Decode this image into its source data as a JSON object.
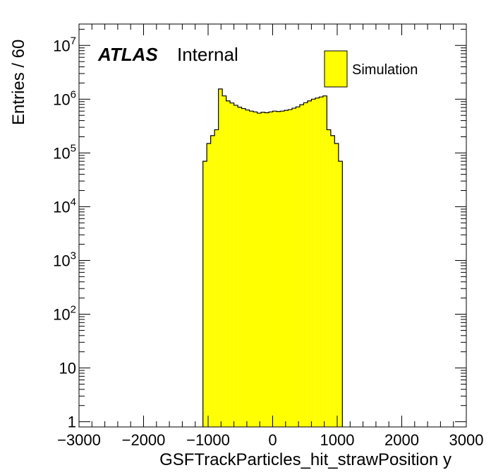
{
  "chart_data": {
    "type": "bar",
    "subtype": "histogram",
    "xlabel": "GSFTrackParticles_hit_strawPosition y",
    "ylabel": "Entries / 60",
    "xlim": [
      -3000,
      3000
    ],
    "ylim": [
      0.8,
      25000000
    ],
    "yscale": "log",
    "x_ticks": [
      "−3000",
      "−2000",
      "−1000",
      "0",
      "1000",
      "2000",
      "3000"
    ],
    "x_tick_values": [
      -3000,
      -2000,
      -1000,
      0,
      1000,
      2000,
      3000
    ],
    "y_ticks": [
      {
        "value": 1,
        "base": "1",
        "exp": ""
      },
      {
        "value": 10,
        "base": "10",
        "exp": ""
      },
      {
        "value": 100,
        "base": "10",
        "exp": "2"
      },
      {
        "value": 1000,
        "base": "10",
        "exp": "3"
      },
      {
        "value": 10000,
        "base": "10",
        "exp": "4"
      },
      {
        "value": 100000,
        "base": "10",
        "exp": "5"
      },
      {
        "value": 1000000,
        "base": "10",
        "exp": "6"
      },
      {
        "value": 10000000,
        "base": "10",
        "exp": "7"
      }
    ],
    "bin_width": 60,
    "bin_edges_start": -1080,
    "series": [
      {
        "name": "Simulation",
        "color": "#ffff00",
        "edge_color": "#000000",
        "bins": [
          {
            "x0": -1080,
            "x1": -1020,
            "y": 70000
          },
          {
            "x0": -1020,
            "x1": -960,
            "y": 150000
          },
          {
            "x0": -960,
            "x1": -900,
            "y": 210000
          },
          {
            "x0": -900,
            "x1": -840,
            "y": 270000
          },
          {
            "x0": -840,
            "x1": -780,
            "y": 1550000
          },
          {
            "x0": -780,
            "x1": -720,
            "y": 1150000
          },
          {
            "x0": -720,
            "x1": -660,
            "y": 930000
          },
          {
            "x0": -660,
            "x1": -600,
            "y": 850000
          },
          {
            "x0": -600,
            "x1": -540,
            "y": 770000
          },
          {
            "x0": -540,
            "x1": -480,
            "y": 710000
          },
          {
            "x0": -480,
            "x1": -420,
            "y": 670000
          },
          {
            "x0": -420,
            "x1": -360,
            "y": 630000
          },
          {
            "x0": -360,
            "x1": -300,
            "y": 600000
          },
          {
            "x0": -300,
            "x1": -240,
            "y": 580000
          },
          {
            "x0": -240,
            "x1": -180,
            "y": 550000
          },
          {
            "x0": -180,
            "x1": -120,
            "y": 570000
          },
          {
            "x0": -120,
            "x1": -60,
            "y": 560000
          },
          {
            "x0": -60,
            "x1": 0,
            "y": 580000
          },
          {
            "x0": 0,
            "x1": 60,
            "y": 600000
          },
          {
            "x0": 60,
            "x1": 120,
            "y": 590000
          },
          {
            "x0": 120,
            "x1": 180,
            "y": 600000
          },
          {
            "x0": 180,
            "x1": 240,
            "y": 620000
          },
          {
            "x0": 240,
            "x1": 300,
            "y": 640000
          },
          {
            "x0": 300,
            "x1": 360,
            "y": 680000
          },
          {
            "x0": 360,
            "x1": 420,
            "y": 720000
          },
          {
            "x0": 420,
            "x1": 480,
            "y": 790000
          },
          {
            "x0": 480,
            "x1": 540,
            "y": 860000
          },
          {
            "x0": 540,
            "x1": 600,
            "y": 930000
          },
          {
            "x0": 600,
            "x1": 660,
            "y": 1000000
          },
          {
            "x0": 660,
            "x1": 720,
            "y": 1050000
          },
          {
            "x0": 720,
            "x1": 780,
            "y": 1100000
          },
          {
            "x0": 780,
            "x1": 840,
            "y": 1150000
          },
          {
            "x0": 840,
            "x1": 900,
            "y": 270000
          },
          {
            "x0": 900,
            "x1": 960,
            "y": 210000
          },
          {
            "x0": 960,
            "x1": 1020,
            "y": 150000
          },
          {
            "x0": 1020,
            "x1": 1080,
            "y": 70000
          }
        ]
      }
    ],
    "legend": {
      "position": "top-right",
      "entries": [
        "Simulation"
      ]
    },
    "grid": false
  },
  "labels": {
    "atlas": "ATLAS",
    "internal": "Internal",
    "legend_entry": "Simulation"
  }
}
